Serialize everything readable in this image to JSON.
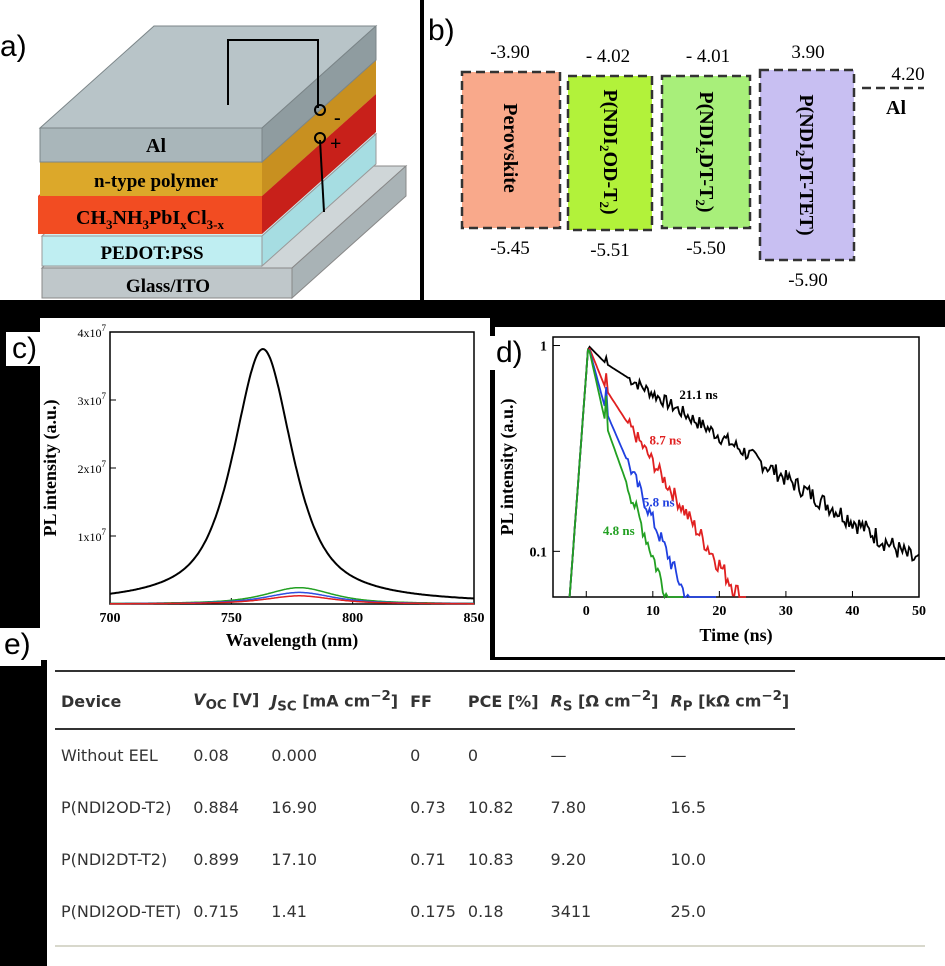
{
  "panel_a": {
    "label": "a)",
    "layers": [
      "Al",
      "n-type polymer",
      "CH3NH3PbIxCl3-x",
      "PEDOT:PSS",
      "Glass/ITO"
    ],
    "polarity": [
      "-",
      "+"
    ]
  },
  "panel_b": {
    "label": "b)",
    "levels": [
      {
        "name": "Perovskite",
        "lumo": "-3.90",
        "homo": "-5.45",
        "color": "#f9a98b"
      },
      {
        "name": "P(NDI2OD-T2)",
        "lumo": "- 4.02",
        "homo": "-5.51",
        "color": "#b2f23a"
      },
      {
        "name": "P(NDI2DT-T2)",
        "lumo": "- 4.01",
        "homo": "-5.50",
        "color": "#a8ef7a"
      },
      {
        "name": "P(NDI2DT-TET)",
        "lumo": "3.90",
        "homo": "-5.90",
        "color": "#c8bff2"
      }
    ],
    "al": {
      "name": "Al",
      "value": "4.20"
    }
  },
  "panel_c": {
    "label": "c)",
    "chart_data": {
      "type": "line",
      "xlabel": "Wavelength (nm)",
      "ylabel": "PL intensity (a.u.)",
      "xlim": [
        700,
        850
      ],
      "ylim": [
        0,
        40000000
      ],
      "xticks": [
        "700",
        "750",
        "800",
        "850"
      ],
      "yticks": [
        {
          "v": 10000000,
          "base": "1x10",
          "exp": "7"
        },
        {
          "v": 20000000,
          "base": "2x10",
          "exp": "7"
        },
        {
          "v": 30000000,
          "base": "3x10",
          "exp": "7"
        },
        {
          "v": 40000000,
          "base": "4x10",
          "exp": "7"
        }
      ],
      "series": [
        {
          "color": "#000000",
          "peak_x": 763,
          "peak_y": 37500000,
          "width": 15
        },
        {
          "color": "#22a022",
          "peak_x": 778,
          "peak_y": 2400000,
          "width": 17
        },
        {
          "color": "#3050e0",
          "peak_x": 778,
          "peak_y": 1700000,
          "width": 17
        },
        {
          "color": "#e02020",
          "peak_x": 778,
          "peak_y": 1200000,
          "width": 17
        }
      ]
    }
  },
  "panel_d": {
    "label": "d)",
    "chart_data": {
      "type": "line",
      "xlabel": "Time (ns)",
      "ylabel": "PL intensity (a.u.)",
      "xlim": [
        -5,
        50
      ],
      "ylim": [
        0.06,
        1.1
      ],
      "yscale": "log",
      "xticks": [
        "0",
        "10",
        "20",
        "30",
        "40",
        "50"
      ],
      "yticks": [
        "0.1",
        "1"
      ],
      "series": [
        {
          "name": "21.1 ns",
          "color": "#000000",
          "tau": 21.1,
          "end": 50
        },
        {
          "name": "8.7 ns",
          "color": "#e02020",
          "tau": 8.7,
          "end": 24
        },
        {
          "name": "5.8 ns",
          "color": "#2040e0",
          "tau": 5.8,
          "end": 19.5
        },
        {
          "name": "4.8 ns",
          "color": "#22a022",
          "tau": 4.8,
          "end": 14.5
        }
      ]
    }
  },
  "panel_e": {
    "label": "e)",
    "headers": [
      {
        "main": "Device"
      },
      {
        "main": "V",
        "sub": "OC",
        "unit": " [V]"
      },
      {
        "main": "J",
        "sub": "SC",
        "unit": " [mA cm",
        "sup": "−2",
        "end": "]"
      },
      {
        "main": "FF"
      },
      {
        "main": "PCE [%]"
      },
      {
        "main": "R",
        "sub": "S",
        "unit": " [Ω cm",
        "sup": "−2",
        "end": "]"
      },
      {
        "main": "R",
        "sub": "P",
        "unit": " [kΩ cm",
        "sup": "−2",
        "end": "]"
      }
    ],
    "rows": [
      [
        "Without EEL",
        "0.08",
        "0.000",
        "0",
        "0",
        "—",
        "—"
      ],
      [
        "P(NDI2OD-T2)",
        "0.884",
        "16.90",
        "0.73",
        "10.82",
        "7.80",
        "16.5"
      ],
      [
        "P(NDI2DT-T2)",
        "0.899",
        "17.10",
        "0.71",
        "10.83",
        "9.20",
        "10.0"
      ],
      [
        "P(NDI2OD-TET)",
        "0.715",
        "1.41",
        "0.175",
        "0.18",
        "3411",
        "25.0"
      ]
    ]
  }
}
